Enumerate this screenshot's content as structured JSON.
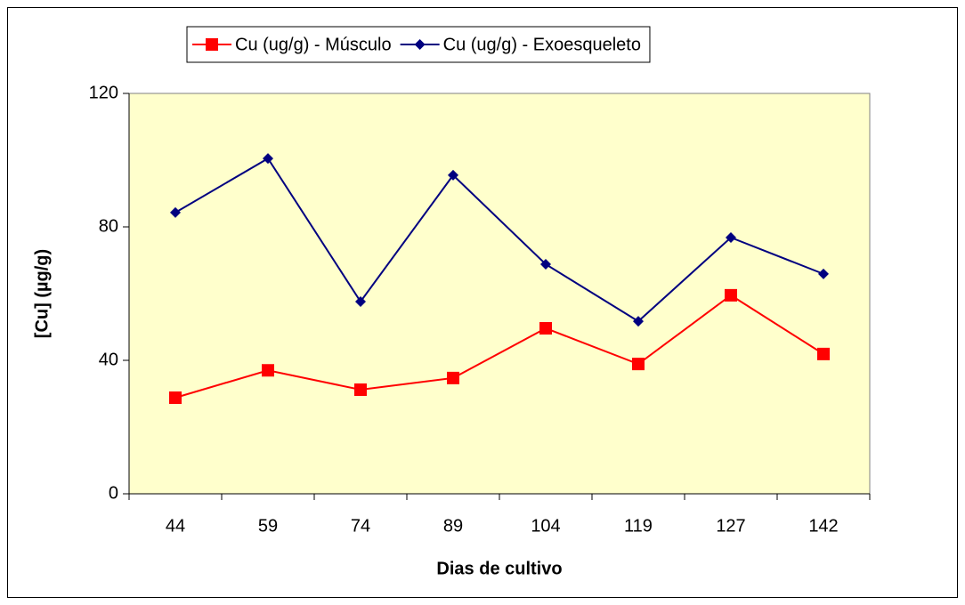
{
  "chart_data": {
    "type": "line",
    "xlabel": "Dias de cultivo",
    "ylabel": "[Cu] (µg/g)",
    "categories": [
      "44",
      "59",
      "74",
      "89",
      "104",
      "119",
      "127",
      "142"
    ],
    "series": [
      {
        "name": "Cu (ug/g) - Músculo",
        "color": "#ff0000",
        "marker": "square",
        "values": [
          28.8,
          37,
          31.2,
          34.7,
          49.6,
          38.9,
          59.5,
          41.9
        ]
      },
      {
        "name": "Cu (ug/g) - Exoesqueleto",
        "color": "#000080",
        "marker": "diamond",
        "values": [
          84.3,
          100.5,
          57.6,
          95.5,
          68.8,
          51.7,
          76.8,
          65.9
        ]
      }
    ],
    "ylim": [
      0,
      120
    ],
    "yticks": [
      0,
      40,
      80,
      120
    ],
    "legend": "top",
    "plot_background": "#ffffcc"
  }
}
